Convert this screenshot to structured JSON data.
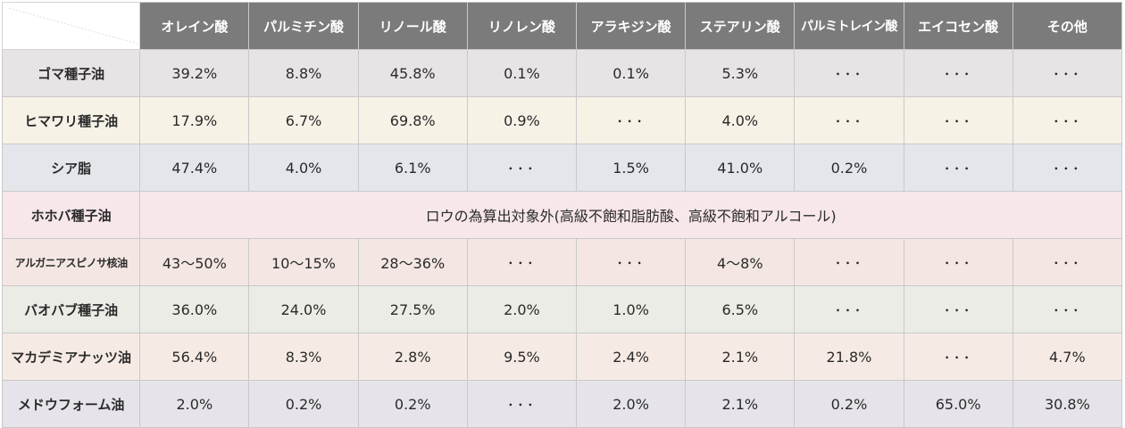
{
  "chart_data": {
    "type": "table",
    "columns": [
      "オレイン酸",
      "パルミチン酸",
      "リノール酸",
      "リノレン酸",
      "アラキジン酸",
      "ステアリン酸",
      "パルミトレイン酸",
      "エイコセン酸",
      "その他"
    ],
    "rows": [
      {
        "name": "ゴマ種子油",
        "color": "#e8e3e5",
        "cells": [
          "39.2%",
          "8.8%",
          "45.8%",
          "0.1%",
          "0.1%",
          "5.3%",
          "･･･",
          "･･･",
          "･･･"
        ]
      },
      {
        "name": "ヒマワリ種子油",
        "color": "#f6f2e6",
        "cells": [
          "17.9%",
          "6.7%",
          "69.8%",
          "0.9%",
          "･･･",
          "4.0%",
          "･･･",
          "･･･",
          "･･･"
        ]
      },
      {
        "name": "シア脂",
        "color": "#e3e6ea",
        "cells": [
          "47.4%",
          "4.0%",
          "6.1%",
          "･･･",
          "1.5%",
          "41.0%",
          "0.2%",
          "･･･",
          "･･･"
        ]
      },
      {
        "name": "ホホバ種子油",
        "color": "#f7e7ea",
        "span_text": "ロウの為算出対象外(高級不飽和脂肪酸、高級不飽和アルコール)"
      },
      {
        "name": "アルガニアスピノサ核油",
        "color": "#f4e7e3",
        "cells": [
          "43～50%",
          "10～15%",
          "28～36%",
          "･･･",
          "･･･",
          "4～8%",
          "･･･",
          "･･･",
          "･･･"
        ]
      },
      {
        "name": "バオバブ種子油",
        "color": "#ebece6",
        "cells": [
          "36.0%",
          "24.0%",
          "27.5%",
          "2.0%",
          "1.0%",
          "6.5%",
          "･･･",
          "･･･",
          "･･･"
        ]
      },
      {
        "name": "マカデミアナッツ油",
        "color": "#f6ebe4",
        "cells": [
          "56.4%",
          "8.3%",
          "2.8%",
          "9.5%",
          "2.4%",
          "2.1%",
          "21.8%",
          "･･･",
          "4.7%"
        ]
      },
      {
        "name": "メドウフォーム油",
        "color": "#e6e4ea",
        "cells": [
          "2.0%",
          "0.2%",
          "0.2%",
          "･･･",
          "2.0%",
          "2.1%",
          "0.2%",
          "65.0%",
          "30.8%"
        ]
      }
    ],
    "header_color": "#7b7b7b"
  }
}
